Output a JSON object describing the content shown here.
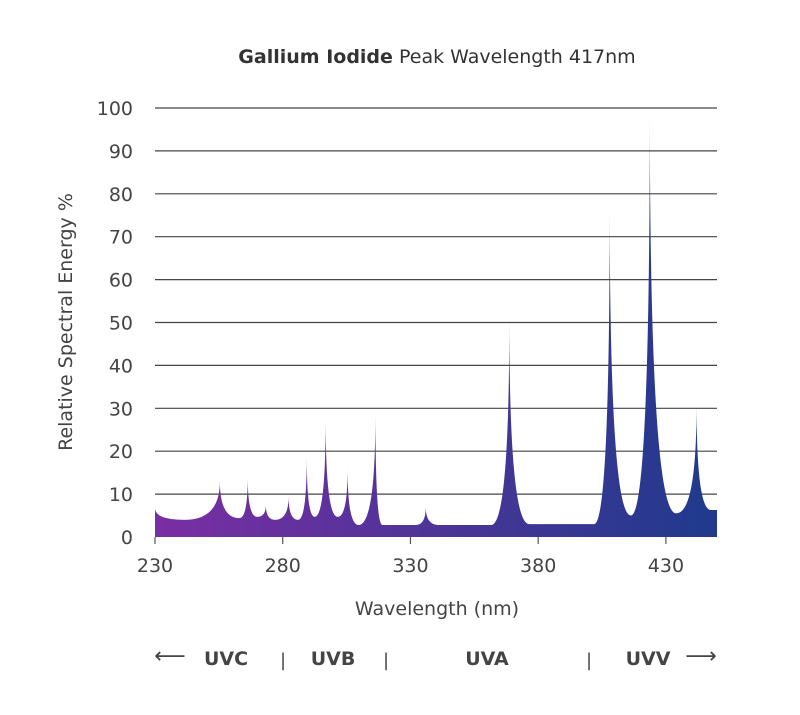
{
  "chart_data": {
    "type": "area",
    "title_bold": "Gallium Iodide",
    "title_rest": "Peak Wavelength 417nm",
    "xlabel": "Wavelength (nm)",
    "ylabel": "Relative Spectral Energy %",
    "xlim": [
      230,
      450
    ],
    "ylim": [
      0,
      100
    ],
    "x_ticks": [
      230,
      280,
      330,
      380,
      430
    ],
    "y_ticks": [
      0,
      10,
      20,
      30,
      40,
      50,
      60,
      70,
      80,
      90,
      100
    ],
    "grid": true,
    "colors": {
      "fill_start": "#7a2ea3",
      "fill_end": "#1f3a8c",
      "grid": "#444444"
    },
    "spectrum": [
      [
        230,
        6.8
      ],
      [
        241.7,
        4
      ],
      [
        255.4,
        13
      ],
      [
        263,
        4.4
      ],
      [
        266.3,
        14
      ],
      [
        270,
        4.7
      ],
      [
        273.4,
        7.5
      ],
      [
        277,
        4
      ],
      [
        282.3,
        9.5
      ],
      [
        286,
        4
      ],
      [
        289.4,
        19
      ],
      [
        292.5,
        4.7
      ],
      [
        296.8,
        28
      ],
      [
        301.5,
        4.7
      ],
      [
        305.4,
        16
      ],
      [
        309.7,
        2.8
      ],
      [
        316.3,
        29
      ],
      [
        319,
        2.8
      ],
      [
        332,
        2.8
      ],
      [
        336,
        7
      ],
      [
        341,
        2.8
      ],
      [
        361.6,
        2.8
      ],
      [
        368.7,
        51
      ],
      [
        376.5,
        3
      ],
      [
        401.9,
        3
      ],
      [
        408,
        78
      ],
      [
        416.3,
        5
      ],
      [
        423.7,
        100
      ],
      [
        434,
        5.5
      ],
      [
        442,
        31
      ],
      [
        447.6,
        6.3
      ],
      [
        450,
        6.3
      ]
    ],
    "bands": {
      "left_arrow": "⟵",
      "right_arrow": "⟶",
      "separator": "|",
      "labels": [
        "UVC",
        "UVB",
        "UVA",
        "UVV"
      ]
    }
  }
}
